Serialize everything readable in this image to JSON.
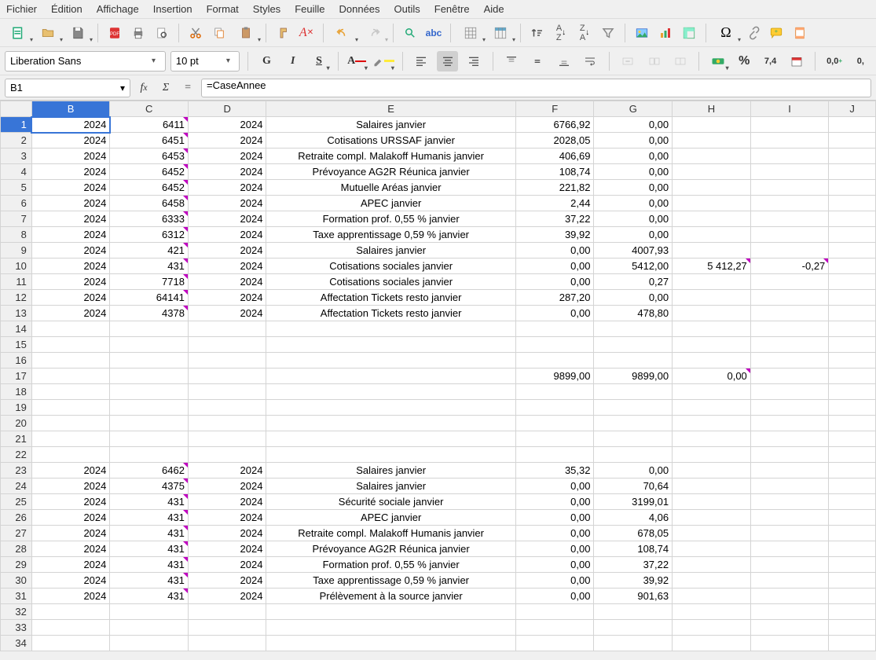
{
  "menus": [
    "Fichier",
    "Édition",
    "Affichage",
    "Insertion",
    "Format",
    "Styles",
    "Feuille",
    "Données",
    "Outils",
    "Fenêtre",
    "Aide"
  ],
  "font_name": "Liberation Sans",
  "font_size": "10 pt",
  "cell_ref": "B1",
  "formula": "=CaseAnnee",
  "columns": [
    "B",
    "C",
    "D",
    "E",
    "F",
    "G",
    "H",
    "I",
    "J"
  ],
  "col_widths": {
    "B": 100,
    "C": 100,
    "D": 100,
    "E": 318,
    "F": 100,
    "G": 100,
    "H": 100,
    "I": 100,
    "J": 60
  },
  "selected_cell": {
    "col": "B",
    "row": 1
  },
  "row_count": 34,
  "rows": {
    "1": {
      "B": "2024",
      "C": "6411",
      "D": "2024",
      "E": "Salaires janvier",
      "F": "6766,92",
      "G": "0,00",
      "Cnote": true
    },
    "2": {
      "B": "2024",
      "C": "6451",
      "D": "2024",
      "E": "Cotisations URSSAF janvier",
      "F": "2028,05",
      "G": "0,00",
      "Cnote": true
    },
    "3": {
      "B": "2024",
      "C": "6453",
      "D": "2024",
      "E": "Retraite compl. Malakoff Humanis janvier",
      "F": "406,69",
      "G": "0,00",
      "Cnote": true
    },
    "4": {
      "B": "2024",
      "C": "6452",
      "D": "2024",
      "E": "Prévoyance AG2R Réunica janvier",
      "F": "108,74",
      "G": "0,00",
      "Cnote": true
    },
    "5": {
      "B": "2024",
      "C": "6452",
      "D": "2024",
      "E": "Mutuelle Aréas janvier",
      "F": "221,82",
      "G": "0,00",
      "Cnote": true
    },
    "6": {
      "B": "2024",
      "C": "6458",
      "D": "2024",
      "E": "APEC janvier",
      "F": "2,44",
      "G": "0,00",
      "Cnote": true
    },
    "7": {
      "B": "2024",
      "C": "6333",
      "D": "2024",
      "E": "Formation prof. 0,55 % janvier",
      "F": "37,22",
      "G": "0,00",
      "Cnote": true
    },
    "8": {
      "B": "2024",
      "C": "6312",
      "D": "2024",
      "E": "Taxe apprentissage 0,59 % janvier",
      "F": "39,92",
      "G": "0,00",
      "Cnote": true
    },
    "9": {
      "B": "2024",
      "C": "421",
      "D": "2024",
      "E": "Salaires janvier",
      "F": "0,00",
      "G": "4007,93",
      "Cnote": true
    },
    "10": {
      "B": "2024",
      "C": "431",
      "D": "2024",
      "E": "Cotisations sociales janvier",
      "F": "0,00",
      "G": "5412,00",
      "H": "5 412,27",
      "I": "-0,27",
      "Cnote": true,
      "Hnote": true,
      "Inote": true
    },
    "11": {
      "B": "2024",
      "C": "7718",
      "D": "2024",
      "E": "Cotisations sociales janvier",
      "F": "0,00",
      "G": "0,27",
      "Cnote": true
    },
    "12": {
      "B": "2024",
      "C": "64141",
      "D": "2024",
      "E": "Affectation Tickets resto janvier",
      "F": "287,20",
      "G": "0,00",
      "Cnote": true
    },
    "13": {
      "B": "2024",
      "C": "4378",
      "D": "2024",
      "E": "Affectation Tickets resto janvier",
      "F": "0,00",
      "G": "478,80",
      "Cnote": true
    },
    "17": {
      "F": "9899,00",
      "G": "9899,00",
      "H": "0,00",
      "Hnote": true
    },
    "23": {
      "B": "2024",
      "C": "6462",
      "D": "2024",
      "E": "Salaires janvier",
      "F": "35,32",
      "G": "0,00",
      "Cnote": true
    },
    "24": {
      "B": "2024",
      "C": "4375",
      "D": "2024",
      "E": "Salaires janvier",
      "F": "0,00",
      "G": "70,64",
      "Cnote": true
    },
    "25": {
      "B": "2024",
      "C": "431",
      "D": "2024",
      "E": "Sécurité sociale janvier",
      "F": "0,00",
      "G": "3199,01",
      "Cnote": true
    },
    "26": {
      "B": "2024",
      "C": "431",
      "D": "2024",
      "E": "APEC janvier",
      "F": "0,00",
      "G": "4,06",
      "Cnote": true
    },
    "27": {
      "B": "2024",
      "C": "431",
      "D": "2024",
      "E": "Retraite compl. Malakoff Humanis janvier",
      "F": "0,00",
      "G": "678,05",
      "Cnote": true
    },
    "28": {
      "B": "2024",
      "C": "431",
      "D": "2024",
      "E": "Prévoyance AG2R Réunica janvier",
      "F": "0,00",
      "G": "108,74",
      "Cnote": true
    },
    "29": {
      "B": "2024",
      "C": "431",
      "D": "2024",
      "E": "Formation prof. 0,55 % janvier",
      "F": "0,00",
      "G": "37,22",
      "Cnote": true
    },
    "30": {
      "B": "2024",
      "C": "431",
      "D": "2024",
      "E": "Taxe apprentissage 0,59 % janvier",
      "F": "0,00",
      "G": "39,92",
      "Cnote": true
    },
    "31": {
      "B": "2024",
      "C": "431",
      "D": "2024",
      "E": "Prélèvement à la source janvier",
      "F": "0,00",
      "G": "901,63",
      "Cnote": true
    }
  },
  "text_cols": [
    "E"
  ],
  "num_cols": [
    "B",
    "C",
    "D",
    "F",
    "G",
    "H",
    "I"
  ],
  "colors": {
    "selection": "#3875d7",
    "note": "#c000c0",
    "grid": "#d4d4d4",
    "header_bg": "#f0f0f0"
  }
}
